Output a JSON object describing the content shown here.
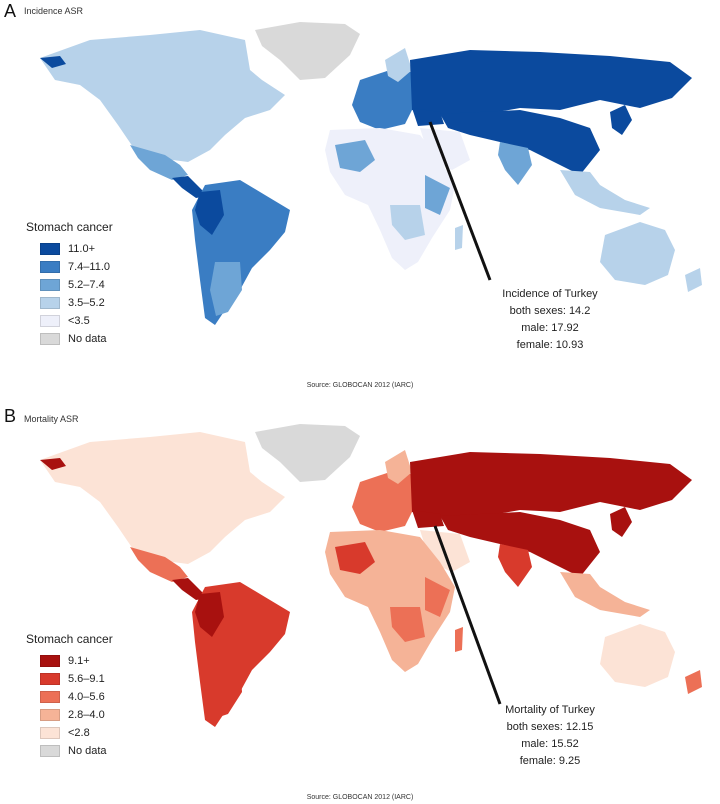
{
  "panels": [
    {
      "letter": "A",
      "map_title": "Incidence ASR",
      "legend_title": "Stomach cancer",
      "legend": [
        {
          "label": "11.0+",
          "color": "#0b4a9e"
        },
        {
          "label": "7.4–11.0",
          "color": "#3a7dc3"
        },
        {
          "label": "5.2–7.4",
          "color": "#6ea5d6"
        },
        {
          "label": "3.5–5.2",
          "color": "#b7d2ea"
        },
        {
          "label": "<3.5",
          "color": "#eef0fa"
        },
        {
          "label": "No data",
          "color": "#d9d9d9"
        }
      ],
      "callout": [
        "Incidence of Turkey",
        "both sexes: 14.2",
        "male: 17.92",
        "female: 10.93"
      ],
      "source": "Source: GLOBOCAN 2012 (IARC)"
    },
    {
      "letter": "B",
      "map_title": "Mortality ASR",
      "legend_title": "Stomach cancer",
      "legend": [
        {
          "label": "9.1+",
          "color": "#a8110f"
        },
        {
          "label": "5.6–9.1",
          "color": "#d83a2c"
        },
        {
          "label": "4.0–5.6",
          "color": "#ec7056"
        },
        {
          "label": "2.8–4.0",
          "color": "#f5b397"
        },
        {
          "label": "<2.8",
          "color": "#fce3d6"
        },
        {
          "label": "No data",
          "color": "#d9d9d9"
        }
      ],
      "callout": [
        "Mortality of Turkey",
        "both sexes: 12.15",
        "male: 15.52",
        "female: 9.25"
      ],
      "source": "Source: GLOBOCAN 2012 (IARC)"
    }
  ]
}
